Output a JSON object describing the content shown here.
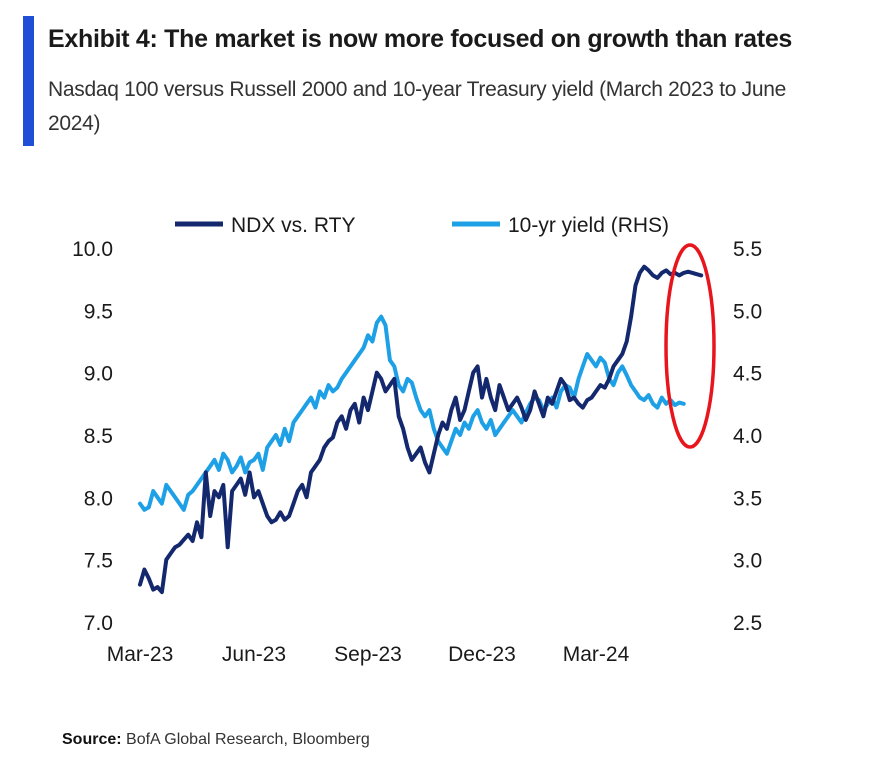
{
  "header": {
    "title": "Exhibit 4: The market is now more focused on growth than rates",
    "subtitle": "Nasdaq 100 versus Russell 2000 and 10-year Treasury yield (March 2023 to June 2024)"
  },
  "footer": {
    "source_label": "Source:",
    "source_text": "BofA Global Research, Bloomberg"
  },
  "colors": {
    "accent": "#1f4fd6",
    "ndx_series": "#14286e",
    "yield_series": "#1ea0e6",
    "highlight_circle": "#e8161c"
  },
  "chart_data": {
    "type": "line",
    "x_tick_labels": [
      "Mar-23",
      "Jun-23",
      "Sep-23",
      "Dec-23",
      "Mar-24"
    ],
    "x_ticks": [
      0,
      13,
      26,
      39,
      52
    ],
    "x_range": [
      0,
      65
    ],
    "y_left": {
      "range": [
        7.0,
        10.0
      ],
      "tick_labels": [
        "7.0",
        "7.5",
        "8.0",
        "8.5",
        "9.0",
        "9.5",
        "10.0"
      ]
    },
    "y_right": {
      "range": [
        2.5,
        5.5
      ],
      "tick_labels": [
        "2.5",
        "3.0",
        "3.5",
        "4.0",
        "4.5",
        "5.0",
        "5.5"
      ]
    },
    "grid": false,
    "legend_position": "top",
    "annotation": "red ellipse highlighting the recent surge in NDX vs. RTY (May–June 2024)",
    "series": [
      {
        "name": "NDX vs. RTY",
        "axis": "left",
        "x": [
          0,
          0.5,
          1,
          1.5,
          2,
          2.5,
          3,
          3.5,
          4,
          4.5,
          5,
          5.5,
          6,
          6.5,
          7,
          7.5,
          8,
          8.5,
          9,
          9.5,
          10,
          10.5,
          11,
          11.5,
          12,
          12.5,
          13,
          13.5,
          14,
          14.5,
          15,
          15.5,
          16,
          16.5,
          17,
          17.5,
          18,
          18.5,
          19,
          19.5,
          20,
          20.5,
          21,
          21.5,
          22,
          22.5,
          23,
          23.5,
          24,
          24.5,
          25,
          25.5,
          26,
          26.5,
          27,
          27.5,
          28,
          28.5,
          29,
          29.5,
          30,
          30.5,
          31,
          31.5,
          32,
          32.5,
          33,
          33.5,
          34,
          34.5,
          35,
          35.5,
          36,
          36.5,
          37,
          37.5,
          38,
          38.5,
          39,
          39.5,
          40,
          40.5,
          41,
          41.5,
          42,
          42.5,
          43,
          43.5,
          44,
          44.5,
          45,
          45.5,
          46,
          46.5,
          47,
          47.5,
          48,
          48.5,
          49,
          49.5,
          50,
          50.5,
          51,
          51.5,
          52,
          52.5,
          53,
          53.5,
          54,
          54.5,
          55,
          55.5,
          56,
          56.5,
          57,
          57.5,
          58,
          58.5,
          59,
          59.5,
          60,
          60.5,
          61,
          61.5,
          62,
          62.5,
          63,
          63.5,
          64
        ],
        "values": [
          7.3,
          7.42,
          7.35,
          7.26,
          7.28,
          7.24,
          7.5,
          7.55,
          7.6,
          7.62,
          7.66,
          7.7,
          7.65,
          7.8,
          7.68,
          8.2,
          7.85,
          8.05,
          8.0,
          8.1,
          7.6,
          8.05,
          8.1,
          8.15,
          8.02,
          8.2,
          8.0,
          8.05,
          7.95,
          7.85,
          7.8,
          7.82,
          7.88,
          7.82,
          7.85,
          7.95,
          8.05,
          8.1,
          8.0,
          8.2,
          8.25,
          8.3,
          8.4,
          8.45,
          8.48,
          8.6,
          8.65,
          8.55,
          8.7,
          8.75,
          8.6,
          8.8,
          8.7,
          8.85,
          9.0,
          8.95,
          8.85,
          8.9,
          8.95,
          8.65,
          8.55,
          8.4,
          8.3,
          8.35,
          8.4,
          8.28,
          8.2,
          8.35,
          8.5,
          8.6,
          8.55,
          8.7,
          8.8,
          8.62,
          8.7,
          8.85,
          9.0,
          9.05,
          8.8,
          8.95,
          8.8,
          8.7,
          8.9,
          8.8,
          8.7,
          8.75,
          8.8,
          8.72,
          8.62,
          8.7,
          8.85,
          8.75,
          8.65,
          8.8,
          8.75,
          8.85,
          8.95,
          8.9,
          8.78,
          8.8,
          8.75,
          8.72,
          8.78,
          8.8,
          8.85,
          8.9,
          8.88,
          8.95,
          9.05,
          9.1,
          9.15,
          9.25,
          9.45,
          9.7,
          9.8,
          9.85,
          9.82,
          9.78,
          9.76,
          9.8,
          9.82,
          9.79,
          9.8,
          9.78,
          9.8,
          9.81,
          9.8,
          9.79,
          9.78
        ]
      },
      {
        "name": "10-yr yield (RHS)",
        "axis": "right",
        "x": [
          0,
          0.5,
          1,
          1.5,
          2,
          2.5,
          3,
          3.5,
          4,
          4.5,
          5,
          5.5,
          6,
          6.5,
          7,
          7.5,
          8,
          8.5,
          9,
          9.5,
          10,
          10.5,
          11,
          11.5,
          12,
          12.5,
          13,
          13.5,
          14,
          14.5,
          15,
          15.5,
          16,
          16.5,
          17,
          17.5,
          18,
          18.5,
          19,
          19.5,
          20,
          20.5,
          21,
          21.5,
          22,
          22.5,
          23,
          23.5,
          24,
          24.5,
          25,
          25.5,
          26,
          26.5,
          27,
          27.5,
          28,
          28.5,
          29,
          29.5,
          30,
          30.5,
          31,
          31.5,
          32,
          32.5,
          33,
          33.5,
          34,
          34.5,
          35,
          35.5,
          36,
          36.5,
          37,
          37.5,
          38,
          38.5,
          39,
          39.5,
          40,
          40.5,
          41,
          41.5,
          42,
          42.5,
          43,
          43.5,
          44,
          44.5,
          45,
          45.5,
          46,
          46.5,
          47,
          47.5,
          48,
          48.5,
          49,
          49.5,
          50,
          50.5,
          51,
          51.5,
          52,
          52.5,
          53,
          53.5,
          54,
          54.5,
          55,
          55.5,
          56,
          56.5,
          57,
          57.5,
          58,
          58.5,
          59,
          59.5,
          60,
          60.5,
          61,
          61.5,
          62
        ],
        "values": [
          3.45,
          3.4,
          3.42,
          3.55,
          3.5,
          3.45,
          3.6,
          3.55,
          3.5,
          3.45,
          3.4,
          3.52,
          3.55,
          3.6,
          3.65,
          3.7,
          3.75,
          3.8,
          3.72,
          3.85,
          3.8,
          3.7,
          3.75,
          3.82,
          3.7,
          3.78,
          3.8,
          3.85,
          3.72,
          3.9,
          3.95,
          4.0,
          3.92,
          4.05,
          3.95,
          4.1,
          4.15,
          4.2,
          4.25,
          4.3,
          4.22,
          4.35,
          4.3,
          4.4,
          4.35,
          4.38,
          4.45,
          4.5,
          4.55,
          4.6,
          4.65,
          4.7,
          4.8,
          4.75,
          4.9,
          4.95,
          4.88,
          4.6,
          4.55,
          4.4,
          4.35,
          4.45,
          4.42,
          4.3,
          4.2,
          4.15,
          4.2,
          4.05,
          3.95,
          3.9,
          3.85,
          3.95,
          4.05,
          4.0,
          4.1,
          4.05,
          4.15,
          4.2,
          4.1,
          4.05,
          4.12,
          4.0,
          4.05,
          4.1,
          4.15,
          4.2,
          4.15,
          4.1,
          4.18,
          4.25,
          4.3,
          4.28,
          4.2,
          4.25,
          4.3,
          4.22,
          4.35,
          4.4,
          4.38,
          4.3,
          4.45,
          4.55,
          4.65,
          4.6,
          4.55,
          4.62,
          4.58,
          4.45,
          4.4,
          4.5,
          4.55,
          4.48,
          4.4,
          4.35,
          4.3,
          4.28,
          4.32,
          4.25,
          4.22,
          4.3,
          4.25,
          4.28,
          4.24,
          4.26,
          4.25
        ]
      }
    ]
  }
}
